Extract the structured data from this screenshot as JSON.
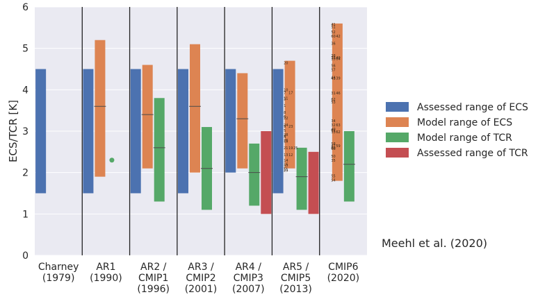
{
  "chart_data": {
    "type": "bar",
    "title": "",
    "xlabel": "",
    "ylabel": "ECS/TCR [K]",
    "ylim": [
      0,
      6
    ],
    "yticks": [
      "0",
      "1",
      "2",
      "3",
      "4",
      "5",
      "6"
    ],
    "grid": "horizontal",
    "categories": [
      [
        "Charney",
        "(1979)"
      ],
      [
        "AR1",
        "(1990)"
      ],
      [
        "AR2 /",
        "CMIP1",
        "(1996)"
      ],
      [
        "AR3 /",
        "CMIP2",
        "(2001)"
      ],
      [
        "AR4 /",
        "CMIP3",
        "(2007)"
      ],
      [
        "AR5 /",
        "CMIP5",
        "(2013)"
      ],
      [
        "CMIP6",
        "(2020)"
      ]
    ],
    "legend_position": "right",
    "series": [
      {
        "name": "Assessed range of ECS",
        "color": "#4c72b0",
        "ranges": [
          [
            1.5,
            4.5
          ],
          [
            1.5,
            4.5
          ],
          [
            1.5,
            4.5
          ],
          [
            1.5,
            4.5
          ],
          [
            2.0,
            4.5
          ],
          [
            1.5,
            4.5
          ],
          null
        ]
      },
      {
        "name": "Model range of ECS",
        "color": "#dd8452",
        "ranges": [
          null,
          [
            1.9,
            5.2
          ],
          [
            2.1,
            4.6
          ],
          [
            2.0,
            5.1
          ],
          [
            2.1,
            4.4
          ],
          [
            2.1,
            4.7
          ],
          [
            1.8,
            5.6
          ]
        ],
        "means": [
          null,
          3.6,
          3.4,
          3.6,
          3.3,
          null,
          null
        ]
      },
      {
        "name": "Model range of TCR",
        "color": "#55a868",
        "ranges": [
          null,
          null,
          [
            1.3,
            3.8
          ],
          [
            1.1,
            3.1
          ],
          [
            1.2,
            2.7
          ],
          [
            1.1,
            2.6
          ],
          [
            1.3,
            3.0
          ]
        ],
        "means": [
          null,
          null,
          2.6,
          2.1,
          2.0,
          1.9,
          2.2
        ],
        "points": [
          null,
          2.3,
          null,
          null,
          null,
          null,
          null
        ]
      },
      {
        "name": "Assessed range of TCR",
        "color": "#c44e52",
        "ranges": [
          null,
          null,
          null,
          null,
          [
            1.0,
            3.0
          ],
          [
            1.0,
            2.5
          ],
          null
        ]
      }
    ],
    "model_labels": {
      "AR5": [
        [
          "20",
          4.65
        ],
        [
          "10",
          4.0
        ],
        [
          "11",
          3.8
        ],
        [
          "7",
          3.93
        ],
        [
          "17",
          3.93
        ],
        [
          "3",
          3.78
        ],
        [
          "1",
          3.62
        ],
        [
          "8",
          3.45
        ],
        [
          "6",
          3.35
        ],
        [
          "22",
          3.32
        ],
        [
          "9",
          3.12
        ],
        [
          "23",
          3.12
        ],
        [
          "24",
          3.15
        ],
        [
          "5",
          3.02
        ],
        [
          "4",
          2.87
        ],
        [
          "28",
          2.92
        ],
        [
          "26",
          2.78
        ],
        [
          "2",
          2.88
        ],
        [
          "21",
          2.6
        ],
        [
          "18",
          2.76
        ],
        [
          "19",
          2.6
        ],
        [
          "25",
          2.6
        ],
        [
          "13",
          2.43
        ],
        [
          "12",
          2.43
        ],
        [
          "14",
          2.3
        ],
        [
          "16",
          2.2
        ],
        [
          "27",
          2.15
        ],
        [
          "29",
          2.05
        ],
        [
          "15",
          2.08
        ]
      ],
      "CMIP6": [
        [
          "41",
          5.58
        ],
        [
          "51",
          5.52
        ],
        [
          "52",
          5.4
        ],
        [
          "60",
          5.3
        ],
        [
          "42",
          5.3
        ],
        [
          "36",
          5.12
        ],
        [
          "38",
          4.83
        ],
        [
          "39",
          4.75
        ],
        [
          "37",
          4.78
        ],
        [
          "40",
          4.78
        ],
        [
          "64",
          4.75
        ],
        [
          "56",
          4.58
        ],
        [
          "57",
          4.48
        ],
        [
          "43",
          4.27
        ],
        [
          "39",
          4.28
        ],
        [
          "44",
          4.3
        ],
        [
          "31",
          3.92
        ],
        [
          "46",
          3.92
        ],
        [
          "62",
          3.77
        ],
        [
          "53",
          3.7
        ],
        [
          "34",
          3.25
        ],
        [
          "32",
          3.15
        ],
        [
          "63",
          3.15
        ],
        [
          "40",
          3.05
        ],
        [
          "61",
          3.02
        ],
        [
          "33",
          2.98
        ],
        [
          "62",
          2.98
        ],
        [
          "47",
          2.65
        ],
        [
          "59",
          2.65
        ],
        [
          "58",
          2.7
        ],
        [
          "60",
          2.6
        ],
        [
          "66",
          2.58
        ],
        [
          "50",
          2.4
        ],
        [
          "35",
          2.3
        ],
        [
          "55",
          1.92
        ],
        [
          "54",
          1.82
        ]
      ]
    },
    "annotation": "Meehl et al. (2020)"
  }
}
